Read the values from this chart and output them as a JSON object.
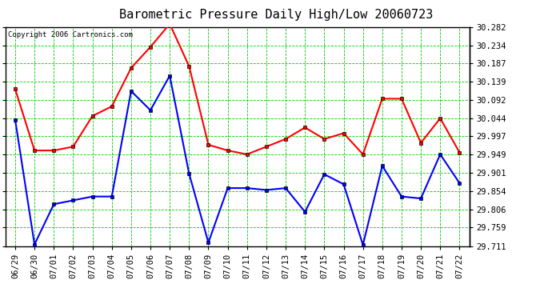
{
  "title": "Barometric Pressure Daily High/Low 20060723",
  "copyright": "Copyright 2006 Cartronics.com",
  "dates": [
    "06/29",
    "06/30",
    "07/01",
    "07/02",
    "07/03",
    "07/04",
    "07/05",
    "07/06",
    "07/07",
    "07/08",
    "07/09",
    "07/10",
    "07/11",
    "07/12",
    "07/13",
    "07/14",
    "07/15",
    "07/16",
    "07/17",
    "07/18",
    "07/19",
    "07/20",
    "07/21",
    "07/22"
  ],
  "high": [
    30.12,
    29.96,
    29.96,
    29.97,
    30.05,
    30.075,
    30.175,
    30.23,
    30.29,
    30.18,
    29.975,
    29.96,
    29.95,
    29.97,
    29.99,
    30.02,
    29.99,
    30.005,
    29.95,
    30.095,
    30.095,
    29.98,
    30.044,
    29.955
  ],
  "low": [
    30.04,
    29.715,
    29.82,
    29.83,
    29.84,
    29.84,
    30.115,
    30.065,
    30.155,
    29.9,
    29.72,
    29.862,
    29.862,
    29.857,
    29.862,
    29.8,
    29.898,
    29.872,
    29.714,
    29.92,
    29.84,
    29.835,
    29.95,
    29.875
  ],
  "high_color": "#FF0000",
  "low_color": "#0000FF",
  "bg_color": "#FFFFFF",
  "grid_color": "#00CC00",
  "ymin": 29.711,
  "ymax": 30.282,
  "yticks": [
    29.711,
    29.759,
    29.806,
    29.854,
    29.901,
    29.949,
    29.997,
    30.044,
    30.092,
    30.139,
    30.187,
    30.234,
    30.282
  ],
  "title_fontsize": 11,
  "copyright_fontsize": 6.5,
  "tick_fontsize": 7.5,
  "line_width": 1.5,
  "marker_size": 3.5
}
